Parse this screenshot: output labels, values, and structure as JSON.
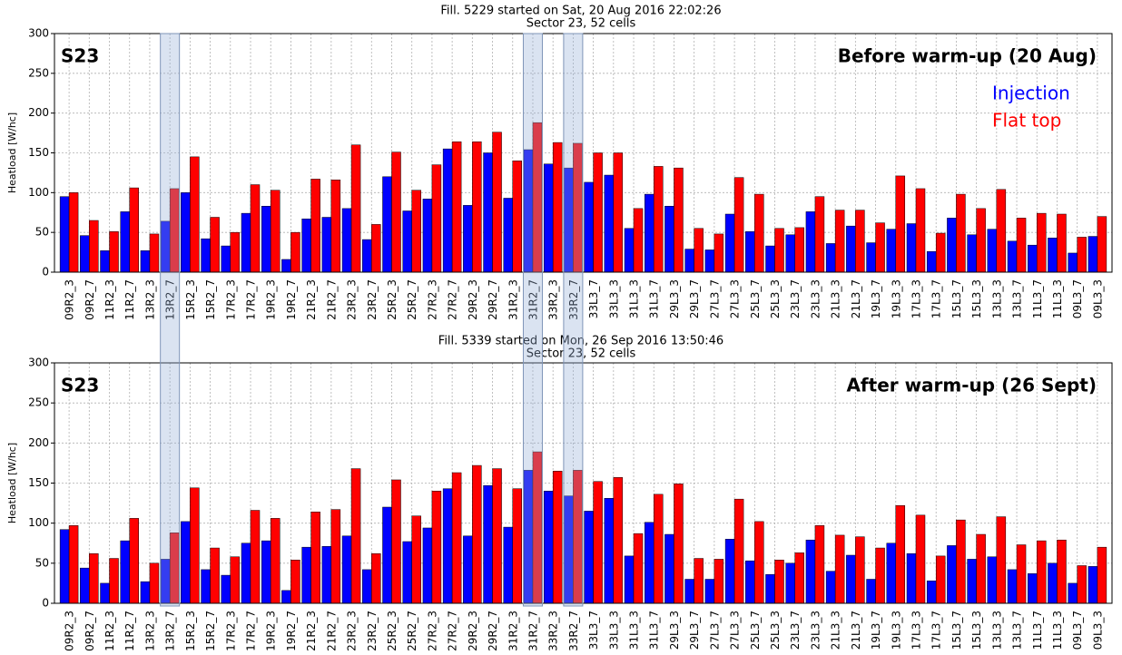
{
  "highlight": [
    "13R2_7",
    "31R2_7",
    "33R2_7"
  ],
  "chart_data": [
    {
      "type": "bar",
      "title": "Fill. 5229 started on Sat, 20 Aug 2016 22:02:26",
      "subtitle": "Sector 23, 52 cells",
      "annotations": [
        "S23",
        "Before warm-up (20 Aug)"
      ],
      "ylabel": "Heatload [W/hc]",
      "categories": [
        "09R2_3",
        "09R2_7",
        "11R2_3",
        "11R2_7",
        "13R2_3",
        "13R2_7",
        "15R2_3",
        "15R2_7",
        "17R2_3",
        "17R2_7",
        "19R2_3",
        "19R2_7",
        "21R2_3",
        "21R2_7",
        "23R2_3",
        "23R2_7",
        "25R2_3",
        "25R2_7",
        "27R2_3",
        "27R2_7",
        "29R2_3",
        "29R2_7",
        "31R2_3",
        "31R2_7",
        "33R2_3",
        "33R2_7",
        "33L3_7",
        "33L3_3",
        "31L3_3",
        "31L3_7",
        "29L3_3",
        "29L3_7",
        "27L3_7",
        "27L3_3",
        "25L3_7",
        "25L3_3",
        "23L3_7",
        "23L3_3",
        "21L3_3",
        "21L3_7",
        "19L3_7",
        "19L3_3",
        "17L3_3",
        "17L3_7",
        "15L3_7",
        "15L3_3",
        "13L3_3",
        "13L3_7",
        "11L3_7",
        "11L3_3",
        "09L3_7",
        "09L3_3"
      ],
      "series": [
        {
          "name": "Injection",
          "color": "#0000ff",
          "values": [
            95,
            46,
            27,
            76,
            27,
            64,
            100,
            42,
            33,
            74,
            83,
            16,
            67,
            69,
            80,
            41,
            120,
            77,
            92,
            155,
            84,
            150,
            93,
            154,
            136,
            131,
            113,
            122,
            55,
            98,
            83,
            29,
            28,
            73,
            51,
            33,
            47,
            76,
            36,
            58,
            37,
            54,
            61,
            26,
            68,
            47,
            54,
            39,
            34,
            43,
            24,
            45
          ]
        },
        {
          "name": "Flat top",
          "color": "#ff0000",
          "values": [
            100,
            65,
            51,
            106,
            48,
            105,
            145,
            69,
            50,
            110,
            103,
            50,
            117,
            116,
            160,
            60,
            151,
            103,
            135,
            164,
            164,
            176,
            140,
            188,
            163,
            162,
            150,
            150,
            80,
            133,
            131,
            55,
            48,
            119,
            98,
            55,
            56,
            95,
            78,
            78,
            62,
            121,
            105,
            49,
            98,
            80,
            104,
            68,
            74,
            73,
            44,
            70
          ]
        }
      ],
      "ylim": [
        0,
        300
      ],
      "yticks": [
        0,
        50,
        100,
        150,
        200,
        250,
        300
      ],
      "grid": true,
      "legend": "upper right"
    },
    {
      "type": "bar",
      "title": "Fill. 5339 started on Mon, 26 Sep 2016 13:50:46",
      "subtitle": "Sector 23, 52 cells",
      "annotations": [
        "S23",
        "After warm-up (26 Sept)"
      ],
      "ylabel": "Heatload [W/hc]",
      "categories": [
        "09R2_3",
        "09R2_7",
        "11R2_3",
        "11R2_7",
        "13R2_3",
        "13R2_7",
        "15R2_3",
        "15R2_7",
        "17R2_3",
        "17R2_7",
        "19R2_3",
        "19R2_7",
        "21R2_3",
        "21R2_7",
        "23R2_3",
        "23R2_7",
        "25R2_3",
        "25R2_7",
        "27R2_3",
        "27R2_7",
        "29R2_3",
        "29R2_7",
        "31R2_3",
        "31R2_7",
        "33R2_3",
        "33R2_7",
        "33L3_7",
        "33L3_3",
        "31L3_3",
        "31L3_7",
        "29L3_3",
        "29L3_7",
        "27L3_7",
        "27L3_3",
        "25L3_7",
        "25L3_3",
        "23L3_7",
        "23L3_3",
        "21L3_3",
        "21L3_7",
        "19L3_7",
        "19L3_3",
        "17L3_3",
        "17L3_7",
        "15L3_7",
        "15L3_3",
        "13L3_3",
        "13L3_7",
        "11L3_7",
        "11L3_3",
        "09L3_7",
        "09L3_3"
      ],
      "series": [
        {
          "color": "#0000ff",
          "values": [
            92,
            44,
            25,
            78,
            27,
            55,
            102,
            42,
            35,
            75,
            78,
            16,
            70,
            71,
            84,
            42,
            120,
            77,
            94,
            143,
            84,
            147,
            95,
            166,
            140,
            134,
            115,
            131,
            59,
            101,
            86,
            30,
            30,
            80,
            53,
            36,
            50,
            79,
            40,
            60,
            30,
            75,
            62,
            28,
            72,
            55,
            58,
            42,
            37,
            50,
            25,
            46
          ]
        },
        {
          "color": "#ff0000",
          "values": [
            97,
            62,
            56,
            106,
            50,
            88,
            144,
            69,
            58,
            116,
            106,
            54,
            114,
            117,
            168,
            62,
            154,
            109,
            140,
            163,
            172,
            168,
            143,
            189,
            165,
            166,
            152,
            157,
            87,
            136,
            149,
            56,
            55,
            130,
            102,
            54,
            63,
            97,
            85,
            83,
            69,
            122,
            110,
            59,
            104,
            86,
            108,
            73,
            78,
            79,
            47,
            70
          ]
        }
      ],
      "ylim": [
        0,
        300
      ],
      "yticks": [
        0,
        50,
        100,
        150,
        200,
        250,
        300
      ],
      "grid": true
    }
  ]
}
